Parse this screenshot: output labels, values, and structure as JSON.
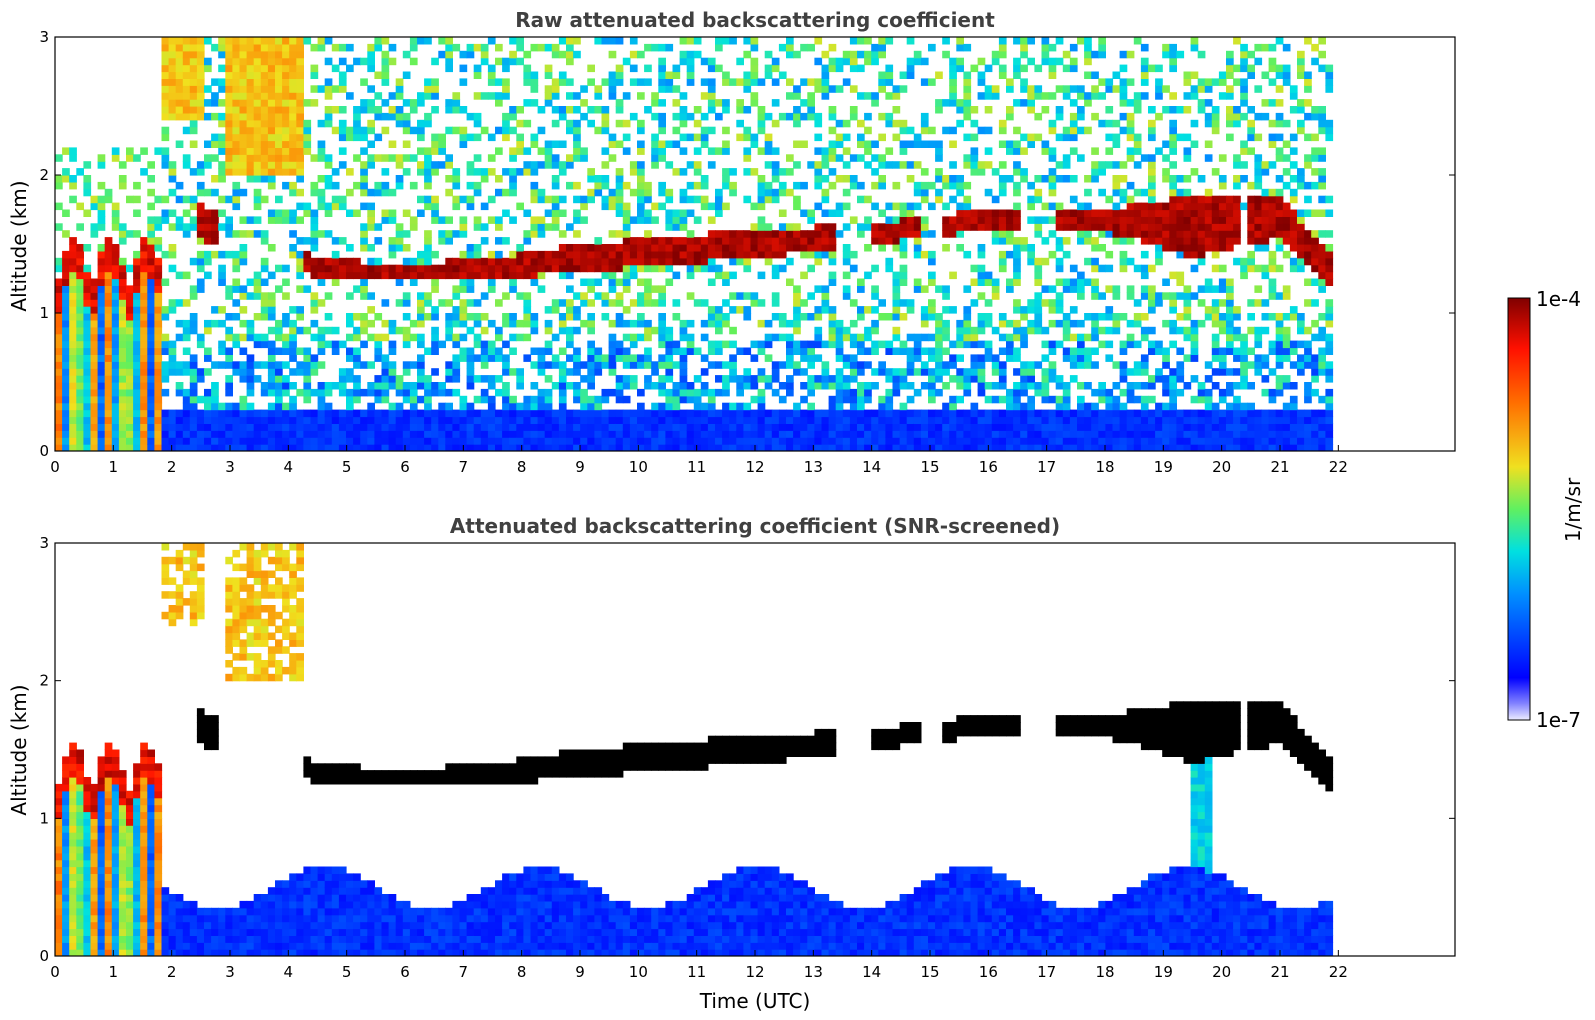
{
  "chart_data": [
    {
      "type": "heatmap",
      "title": "Raw attenuated backscattering coefficient",
      "xlabel": "",
      "ylabel": "Altitude (km)",
      "xlim": [
        0,
        24
      ],
      "ylim": [
        0,
        3
      ],
      "xticks": [
        "0",
        "1",
        "2",
        "3",
        "4",
        "5",
        "6",
        "7",
        "8",
        "9",
        "10",
        "11",
        "12",
        "13",
        "14",
        "15",
        "16",
        "17",
        "18",
        "19",
        "20",
        "21",
        "22"
      ],
      "yticks": [
        "0",
        "1",
        "2",
        "3"
      ],
      "data_end_time": 21.9,
      "features": {
        "low_cloud_columns": {
          "time_range": [
            0,
            1.85
          ],
          "altitude_top": [
            1.1,
            1.6
          ]
        },
        "boundary_layer_top_km": 0.3,
        "cloud_layer": [
          {
            "t": 2.4,
            "base": 1.55,
            "top": 1.8
          },
          {
            "t": 4.5,
            "base": 1.25,
            "top": 1.4
          },
          {
            "t": 6.0,
            "base": 1.25,
            "top": 1.35
          },
          {
            "t": 7.5,
            "base": 1.25,
            "top": 1.4
          },
          {
            "t": 9.0,
            "base": 1.3,
            "top": 1.5
          },
          {
            "t": 10.5,
            "base": 1.35,
            "top": 1.55
          },
          {
            "t": 12.0,
            "base": 1.4,
            "top": 1.6
          },
          {
            "t": 14.0,
            "base": 1.5,
            "top": 1.65
          },
          {
            "t": 16.0,
            "base": 1.6,
            "top": 1.75
          },
          {
            "t": 18.0,
            "base": 1.6,
            "top": 1.75
          },
          {
            "t": 19.5,
            "base": 1.4,
            "top": 1.85
          },
          {
            "t": 21.0,
            "base": 1.55,
            "top": 1.85
          },
          {
            "t": 21.9,
            "base": 1.2,
            "top": 1.4
          }
        ],
        "upper_aerosol_patches": [
          {
            "t_range": [
              1.8,
              2.6
            ],
            "alt_range": [
              2.4,
              3.0
            ]
          },
          {
            "t_range": [
              2.9,
              4.3
            ],
            "alt_range": [
              2.0,
              3.0
            ]
          }
        ]
      }
    },
    {
      "type": "heatmap",
      "title": "Attenuated backscattering coefficient (SNR-screened)",
      "xlabel": "Time (UTC)",
      "ylabel": "Altitude (km)",
      "xlim": [
        0,
        24
      ],
      "ylim": [
        0,
        3
      ],
      "xticks": [
        "0",
        "1",
        "2",
        "3",
        "4",
        "5",
        "6",
        "7",
        "8",
        "9",
        "10",
        "11",
        "12",
        "13",
        "14",
        "15",
        "16",
        "17",
        "18",
        "19",
        "20",
        "21",
        "22"
      ],
      "yticks": [
        "0",
        "1",
        "2",
        "3"
      ],
      "data_end_time": 21.9,
      "features": {
        "boundary_layer_top_km": [
          0.45,
          0.7
        ],
        "cloud_layer_color": "#000000"
      }
    }
  ],
  "colorbar": {
    "label": "1/m/sr",
    "max_label": "1e-4",
    "min_label": "1e-7",
    "scale": "log",
    "colormap": "jet",
    "colors": [
      "#ececff",
      "#0000ff",
      "#00a0ff",
      "#00e8c8",
      "#d8e830",
      "#ffb000",
      "#ff2000",
      "#8c0000"
    ]
  }
}
